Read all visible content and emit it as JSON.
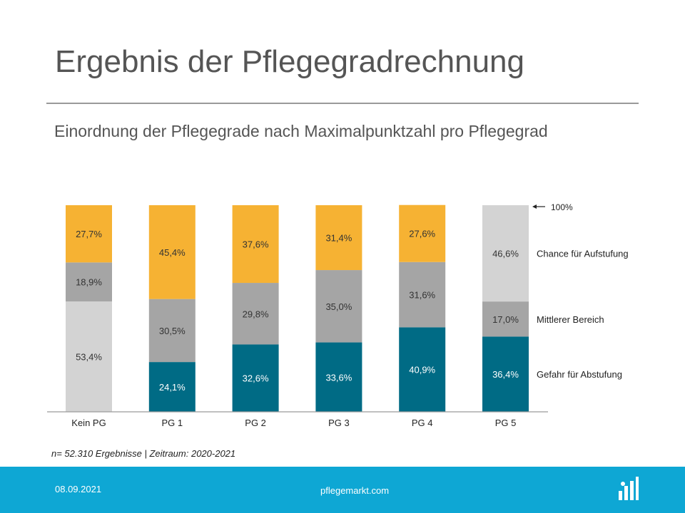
{
  "header": {
    "title": "Ergebnis der Pflegegradrechnung",
    "subtitle": "Einordnung der Pflegegrade nach Maximalpunktzahl pro Pflegegrad"
  },
  "chart_data": {
    "type": "bar",
    "stacked": true,
    "categories": [
      "Kein PG",
      "PG 1",
      "PG 2",
      "PG 3",
      "PG 4",
      "PG 5"
    ],
    "ylim": [
      0,
      100
    ],
    "grid": false,
    "segments": [
      {
        "bottom": {
          "value": 53.4,
          "label": "53,4%",
          "color": "#d3d3d3"
        },
        "middle": {
          "value": 18.9,
          "label": "18,9%",
          "color": "#a5a5a5"
        },
        "top": {
          "value": 27.7,
          "label": "27,7%",
          "color": "#f6b233"
        }
      },
      {
        "bottom": {
          "value": 24.1,
          "label": "24,1%",
          "color": "#006b85"
        },
        "middle": {
          "value": 30.5,
          "label": "30,5%",
          "color": "#a5a5a5"
        },
        "top": {
          "value": 45.4,
          "label": "45,4%",
          "color": "#f6b233"
        }
      },
      {
        "bottom": {
          "value": 32.6,
          "label": "32,6%",
          "color": "#006b85"
        },
        "middle": {
          "value": 29.8,
          "label": "29,8%",
          "color": "#a5a5a5"
        },
        "top": {
          "value": 37.6,
          "label": "37,6%",
          "color": "#f6b233"
        }
      },
      {
        "bottom": {
          "value": 33.6,
          "label": "33,6%",
          "color": "#006b85"
        },
        "middle": {
          "value": 35.0,
          "label": "35,0%",
          "color": "#a5a5a5"
        },
        "top": {
          "value": 31.4,
          "label": "31,4%",
          "color": "#f6b233"
        }
      },
      {
        "bottom": {
          "value": 40.9,
          "label": "40,9%",
          "color": "#006b85"
        },
        "middle": {
          "value": 31.6,
          "label": "31,6%",
          "color": "#a5a5a5"
        },
        "top": {
          "value": 27.6,
          "label": "27,6%",
          "color": "#f6b233"
        }
      },
      {
        "bottom": {
          "value": 36.4,
          "label": "36,4%",
          "color": "#006b85"
        },
        "middle": {
          "value": 17.0,
          "label": "17,0%",
          "color": "#a5a5a5"
        },
        "top": {
          "value": 46.6,
          "label": "46,6%",
          "color": "#d3d3d3"
        }
      }
    ],
    "annotations": {
      "top_marker": "100%",
      "top": "Chance für Aufstufung",
      "middle": "Mittlerer Bereich",
      "bottom": "Gefahr für Abstufung"
    },
    "label_colors": {
      "on_dark": "#ffffff",
      "on_light": "#333333"
    }
  },
  "footnote": "n= 52.310 Ergebnisse | Zeitraum: 2020-2021",
  "footer": {
    "date": "08.09.2021",
    "site": "pflegemarkt.com",
    "logo_icon": "pflegemarkt-logo-icon",
    "background": "#0ea7d4"
  }
}
